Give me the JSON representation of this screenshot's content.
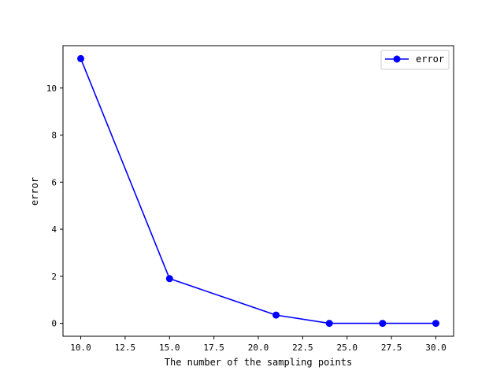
{
  "chart_data": {
    "type": "line",
    "title": "",
    "xlabel": "The number of the sampling points",
    "ylabel": "error",
    "xlim": [
      9.0,
      31.0
    ],
    "ylim": [
      -0.55,
      11.8
    ],
    "x_ticks": [
      10.0,
      12.5,
      15.0,
      17.5,
      20.0,
      22.5,
      25.0,
      27.5,
      30.0
    ],
    "x_tick_labels": [
      "10.0",
      "12.5",
      "15.0",
      "17.5",
      "20.0",
      "22.5",
      "25.0",
      "27.5",
      "30.0"
    ],
    "y_ticks": [
      0,
      2,
      4,
      6,
      8,
      10
    ],
    "y_tick_labels": [
      "0",
      "2",
      "4",
      "6",
      "8",
      "10"
    ],
    "grid": false,
    "legend_position": "top-right",
    "series": [
      {
        "name": "error",
        "color": "#0000ff",
        "marker": "circle",
        "x": [
          10,
          15,
          21,
          24,
          27,
          30
        ],
        "y": [
          11.25,
          1.9,
          0.35,
          0.0,
          0.0,
          0.0
        ]
      }
    ]
  }
}
